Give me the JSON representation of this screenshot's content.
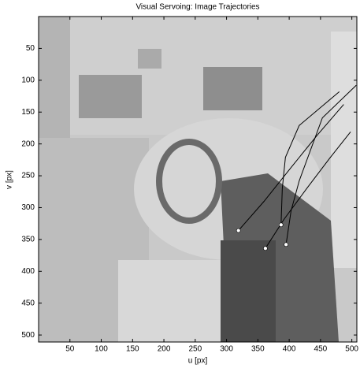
{
  "chart_data": {
    "type": "line",
    "title": "Visual Servoing: Image Trajectories",
    "xlabel": "u [px]",
    "ylabel": "v [px]",
    "xlim": [
      0,
      508
    ],
    "ylim": [
      0,
      511
    ],
    "y_reversed": true,
    "xticks": [
      50,
      100,
      150,
      200,
      250,
      300,
      350,
      400,
      450,
      500
    ],
    "yticks": [
      50,
      100,
      150,
      200,
      250,
      300,
      350,
      400,
      450,
      500
    ],
    "start_markers": true,
    "series": [
      {
        "color": "#000000",
        "x": [
          319,
          360,
          403,
          445,
          487
        ],
        "values": [
          336,
          290,
          237,
          186,
          138
        ]
      },
      {
        "color": "#000000",
        "x": [
          362,
          392,
          428,
          465,
          498
        ],
        "values": [
          364,
          318,
          270,
          222,
          181
        ]
      },
      {
        "color": "#000000",
        "x": [
          387,
          389,
          394,
          416,
          480
        ],
        "values": [
          327,
          270,
          221,
          171,
          118
        ]
      },
      {
        "color": "#000000",
        "x": [
          395,
          403,
          416,
          453,
          507
        ],
        "values": [
          358,
          305,
          258,
          159,
          108
        ]
      }
    ]
  }
}
